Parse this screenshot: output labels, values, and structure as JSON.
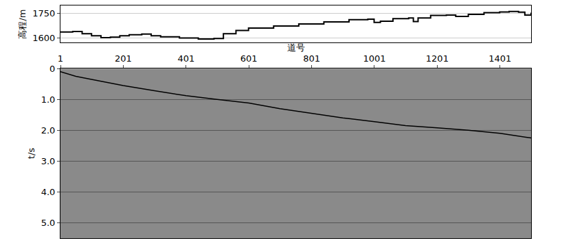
{
  "chart_data": [
    {
      "type": "line",
      "x_label": "道号",
      "y_label": "高程/m",
      "x": [
        1,
        40,
        70,
        100,
        130,
        160,
        190,
        220,
        260,
        290,
        320,
        380,
        440,
        490,
        520,
        560,
        600,
        680,
        760,
        840,
        920,
        980,
        1000,
        1020,
        1060,
        1110,
        1125,
        1140,
        1180,
        1230,
        1260,
        1300,
        1350,
        1400,
        1430,
        1460,
        1480,
        1500
      ],
      "values": [
        1635,
        1638,
        1625,
        1612,
        1600,
        1603,
        1612,
        1618,
        1622,
        1612,
        1605,
        1598,
        1592,
        1595,
        1625,
        1645,
        1660,
        1672,
        1685,
        1698,
        1712,
        1715,
        1695,
        1702,
        1718,
        1722,
        1700,
        1722,
        1738,
        1740,
        1732,
        1745,
        1755,
        1760,
        1763,
        1758,
        1740,
        1755
      ],
      "color": "#000000",
      "line_style": "step",
      "xlim": [
        1,
        1500
      ],
      "ylim": [
        1570,
        1800
      ],
      "yticks": [
        1600,
        1750
      ],
      "tick_labels": "y",
      "grid": true
    },
    {
      "type": "line",
      "y_label": "t/s",
      "x": [
        1,
        50,
        100,
        150,
        201,
        300,
        401,
        500,
        601,
        700,
        801,
        900,
        1001,
        1100,
        1201,
        1300,
        1401,
        1500
      ],
      "values": [
        0.1,
        0.25,
        0.35,
        0.45,
        0.55,
        0.72,
        0.88,
        1.0,
        1.12,
        1.3,
        1.45,
        1.6,
        1.72,
        1.85,
        1.92,
        2.0,
        2.1,
        2.25
      ],
      "color": "#000000",
      "xlim": [
        1,
        1500
      ],
      "ylim": [
        5.5,
        0
      ],
      "xticks": [
        1,
        201,
        401,
        601,
        801,
        1001,
        1201,
        1401
      ],
      "yticks": [
        0,
        {
          "value": 1,
          "label": "1.0"
        },
        {
          "value": 2,
          "label": "2.0"
        },
        {
          "value": 3,
          "label": "3.0"
        },
        {
          "value": 4,
          "label": "4.0"
        },
        {
          "value": 5,
          "label": "5.0"
        }
      ],
      "grid": true
    }
  ]
}
